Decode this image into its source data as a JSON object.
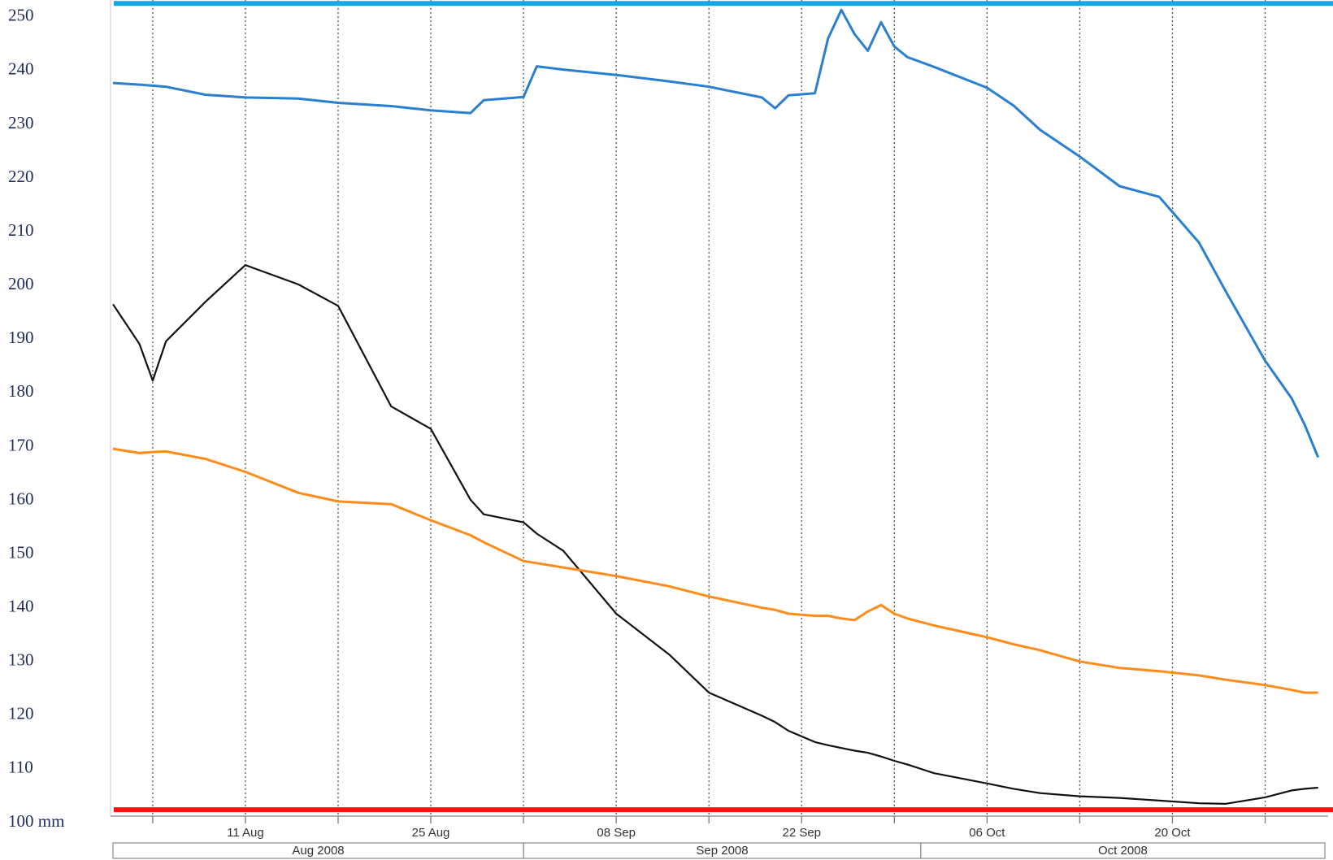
{
  "chart_data": {
    "type": "line",
    "x": [
      "2008-08-01",
      "2008-08-03",
      "2008-08-04",
      "2008-08-05",
      "2008-08-08",
      "2008-08-11",
      "2008-08-15",
      "2008-08-18",
      "2008-08-22",
      "2008-08-25",
      "2008-08-28",
      "2008-08-29",
      "2008-09-01",
      "2008-09-02",
      "2008-09-04",
      "2008-09-08",
      "2008-09-12",
      "2008-09-15",
      "2008-09-19",
      "2008-09-20",
      "2008-09-21",
      "2008-09-23",
      "2008-09-24",
      "2008-09-25",
      "2008-09-26",
      "2008-09-27",
      "2008-09-28",
      "2008-09-29",
      "2008-09-30",
      "2008-10-02",
      "2008-10-06",
      "2008-10-08",
      "2008-10-10",
      "2008-10-13",
      "2008-10-16",
      "2008-10-19",
      "2008-10-22",
      "2008-10-24",
      "2008-10-27",
      "2008-10-29",
      "2008-10-30",
      "2008-10-31"
    ],
    "series": [
      {
        "color": "#2a7fd0",
        "values": [
          237.7,
          237.4,
          237.2,
          237.0,
          235.5,
          235.0,
          234.8,
          234.0,
          233.4,
          232.6,
          232.1,
          234.5,
          235.1,
          240.8,
          240.2,
          239.2,
          238.0,
          237.0,
          235.0,
          233.0,
          235.4,
          235.8,
          246.0,
          251.3,
          246.8,
          243.7,
          249.0,
          244.5,
          242.5,
          240.7,
          236.8,
          233.5,
          229.0,
          224.0,
          218.5,
          216.5,
          208.0,
          199.0,
          186.0,
          179.0,
          174.0,
          168.0
        ]
      },
      {
        "color": "#111111",
        "values": [
          196.5,
          189.1,
          182.3,
          189.6,
          197.0,
          203.8,
          200.2,
          196.2,
          177.5,
          173.3,
          160.1,
          157.4,
          155.9,
          153.8,
          150.6,
          138.9,
          131.3,
          124.2,
          119.9,
          118.7,
          117.1,
          115.0,
          114.4,
          113.9,
          113.4,
          113.0,
          112.3,
          111.5,
          110.8,
          109.2,
          107.3,
          106.3,
          105.5,
          104.9,
          104.6,
          104.1,
          103.6,
          103.5,
          104.7,
          106.0,
          106.3,
          106.5
        ]
      },
      {
        "color": "#ff8c1a",
        "values": [
          169.6,
          168.8,
          169.0,
          169.1,
          167.7,
          165.3,
          161.4,
          159.8,
          159.3,
          156.3,
          153.5,
          152.2,
          148.7,
          148.3,
          147.5,
          145.9,
          144.0,
          142.1,
          140.0,
          139.6,
          138.9,
          138.5,
          138.5,
          138.0,
          137.7,
          139.3,
          140.5,
          138.9,
          138.0,
          136.7,
          134.5,
          133.2,
          132.1,
          130.0,
          128.8,
          128.2,
          127.4,
          126.6,
          125.6,
          124.7,
          124.2,
          124.2
        ]
      }
    ],
    "reference_lines": [
      {
        "value": 252.5,
        "color": "#12a8e8"
      },
      {
        "value": 102.4,
        "color": "#ff1010"
      }
    ],
    "xlim": [
      "2008-08-01",
      "2008-11-01"
    ],
    "xticks": [
      {
        "value": "2008-08-11",
        "label": "11 Aug"
      },
      {
        "value": "2008-08-25",
        "label": "25 Aug"
      },
      {
        "value": "2008-09-08",
        "label": "08 Sep"
      },
      {
        "value": "2008-09-22",
        "label": "22 Sep"
      },
      {
        "value": "2008-10-06",
        "label": "06 Oct"
      },
      {
        "value": "2008-10-20",
        "label": "20 Oct"
      }
    ],
    "xgrid": [
      "2008-08-04",
      "2008-08-11",
      "2008-08-18",
      "2008-08-25",
      "2008-09-01",
      "2008-09-08",
      "2008-09-15",
      "2008-09-22",
      "2008-09-29",
      "2008-10-06",
      "2008-10-13",
      "2008-10-20",
      "2008-10-27"
    ],
    "months": [
      {
        "label": "Aug 2008",
        "start": "2008-08-01",
        "end": "2008-09-01"
      },
      {
        "label": "Sep 2008",
        "start": "2008-09-01",
        "end": "2008-10-01"
      },
      {
        "label": "Oct 2008",
        "start": "2008-10-01",
        "end": "2008-11-01"
      }
    ],
    "ylim": [
      100,
      253
    ],
    "yticks": [
      {
        "value": 100,
        "label": "100 mm"
      },
      110,
      120,
      130,
      140,
      150,
      160,
      170,
      180,
      190,
      200,
      210,
      220,
      230,
      240,
      250
    ]
  }
}
